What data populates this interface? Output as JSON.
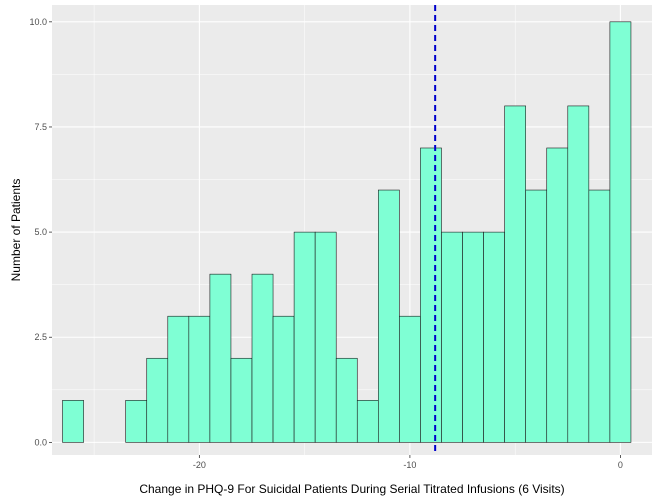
{
  "chart_data": {
    "type": "bar",
    "subtype": "histogram",
    "xlabel": "Change in PHQ-9 For Suicidal Patients During Serial Titrated Infusions (6 Visits)",
    "ylabel": "Number of Patients",
    "xlim": [
      -27.0,
      1.5
    ],
    "ylim": [
      -0.3,
      10.4
    ],
    "x_ticks": [
      -20,
      -10,
      0
    ],
    "x_tick_labels": [
      "-20",
      "-10",
      "0"
    ],
    "y_ticks": [
      0,
      2.5,
      5,
      7.5,
      10
    ],
    "y_tick_labels": [
      "0.0",
      "2.5",
      "5.0",
      "7.5",
      "10.0"
    ],
    "bin_width": 1,
    "bin_centers": [
      -26,
      -25,
      -24,
      -23,
      -22,
      -21,
      -20,
      -19,
      -18,
      -17,
      -16,
      -15,
      -14,
      -13,
      -12,
      -11,
      -10,
      -9,
      -8,
      -7,
      -6,
      -5,
      -4,
      -3,
      -2,
      -1,
      0
    ],
    "counts": [
      1,
      0,
      0,
      1,
      2,
      3,
      3,
      4,
      2,
      4,
      3,
      5,
      5,
      2,
      1,
      6,
      3,
      7,
      5,
      5,
      5,
      8,
      6,
      7,
      8,
      6,
      10
    ],
    "reference_line": {
      "x": -8.8,
      "style": "dashed"
    },
    "grid": true,
    "colors": {
      "bar_fill": "#7fffd4",
      "bar_stroke": "#1a1a1a",
      "panel_background": "#ebebeb",
      "grid_major": "#ffffff",
      "reference_line": "#0000cc"
    }
  }
}
